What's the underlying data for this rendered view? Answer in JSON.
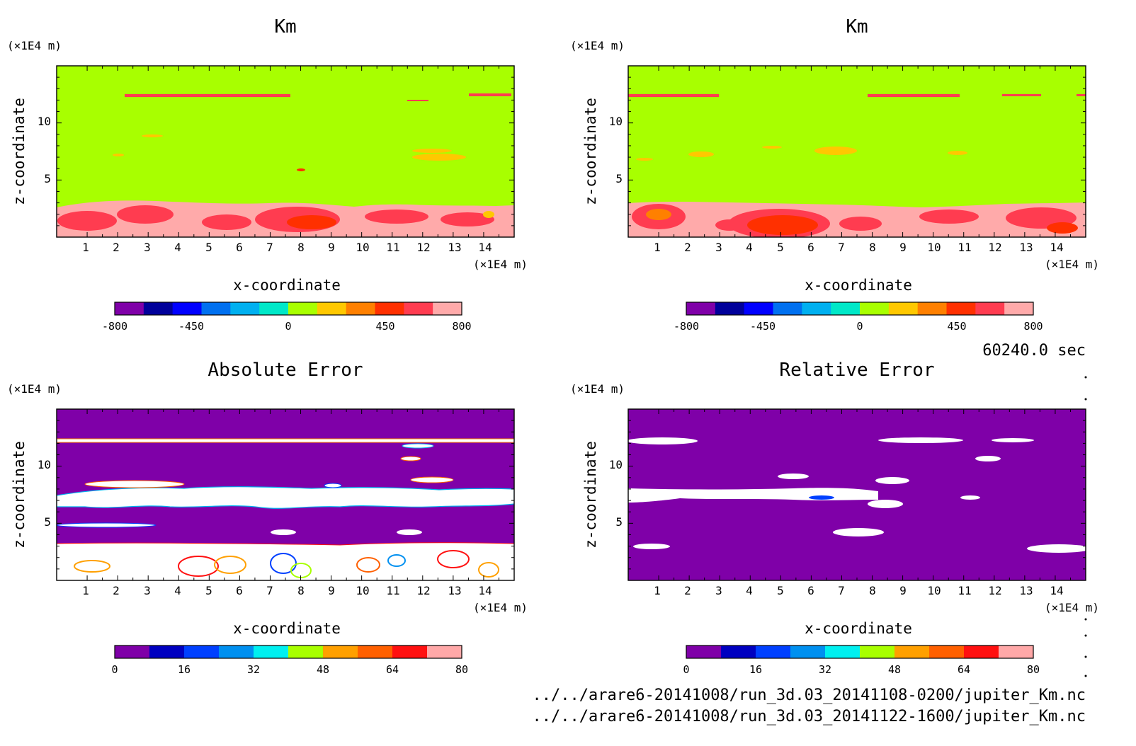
{
  "time_label": "60240.0 sec",
  "file_paths": [
    "../../arare6-20141008/run_3d.03_20141108-0200/jupiter_Km.nc",
    "../../arare6-20141008/run_3d.03_20141122-1600/jupiter_Km.nc"
  ],
  "colors": {
    "km_palette": [
      "#7f00a8",
      "#00009a",
      "#0000ff",
      "#0070f0",
      "#00b0f0",
      "#00e8c8",
      "#a8ff00",
      "#ffc800",
      "#ff8000",
      "#ff3000",
      "#ff3c50",
      "#ffaaaa"
    ],
    "err_palette": [
      "#7f00a8",
      "#0000c0",
      "#0040ff",
      "#0090f0",
      "#00f0f0",
      "#a8ff00",
      "#ffa000",
      "#ff6000",
      "#ff1010",
      "#ffa8a8"
    ]
  },
  "chart_data": [
    {
      "type": "heatmap",
      "title": "Km",
      "xlabel": "x-coordinate",
      "ylabel": "z-coordinate",
      "x_unit": "(×1E4 m)",
      "y_unit": "(×1E4 m)",
      "xlim": [
        0,
        15
      ],
      "ylim": [
        0,
        15
      ],
      "xticks": [
        1,
        2,
        3,
        4,
        5,
        6,
        7,
        8,
        9,
        10,
        11,
        12,
        13,
        14
      ],
      "yticks": [
        5,
        10
      ],
      "colorbar": {
        "min": -800,
        "max": 800,
        "labels": [
          -800,
          -450,
          0,
          450,
          800
        ]
      },
      "background_value": 200,
      "regions": [
        {
          "desc": "lower boundary layer",
          "value": 800
        },
        {
          "desc": "band z~12.3",
          "value": 550
        },
        {
          "desc": "eddies z<3",
          "value": 650
        }
      ]
    },
    {
      "type": "heatmap",
      "title": "Km",
      "xlabel": "x-coordinate",
      "ylabel": "z-coordinate",
      "x_unit": "(×1E4 m)",
      "y_unit": "(×1E4 m)",
      "xlim": [
        0,
        15
      ],
      "ylim": [
        0,
        15
      ],
      "xticks": [
        1,
        2,
        3,
        4,
        5,
        6,
        7,
        8,
        9,
        10,
        11,
        12,
        13,
        14
      ],
      "yticks": [
        5,
        10
      ],
      "colorbar": {
        "min": -800,
        "max": 800,
        "labels": [
          -800,
          -450,
          0,
          450,
          800
        ]
      },
      "background_value": 200
    },
    {
      "type": "heatmap",
      "title": "Absolute Error",
      "xlabel": "x-coordinate",
      "ylabel": "z-coordinate",
      "x_unit": "(×1E4 m)",
      "y_unit": "(×1E4 m)",
      "xlim": [
        0,
        15
      ],
      "ylim": [
        0,
        15
      ],
      "xticks": [
        1,
        2,
        3,
        4,
        5,
        6,
        7,
        8,
        9,
        10,
        11,
        12,
        13,
        14
      ],
      "yticks": [
        5,
        10
      ],
      "colorbar": {
        "min": 0,
        "max": 80,
        "labels": [
          0,
          16,
          32,
          48,
          64,
          80
        ]
      },
      "background_value": 0
    },
    {
      "type": "heatmap",
      "title": "Relative Error",
      "xlabel": "x-coordinate",
      "ylabel": "z-coordinate",
      "x_unit": "(×1E4 m)",
      "y_unit": "(×1E4 m)",
      "xlim": [
        0,
        15
      ],
      "ylim": [
        0,
        15
      ],
      "xticks": [
        1,
        2,
        3,
        4,
        5,
        6,
        7,
        8,
        9,
        10,
        11,
        12,
        13,
        14
      ],
      "yticks": [
        5,
        10
      ],
      "colorbar": {
        "min": 0,
        "max": 80,
        "labels": [
          0,
          16,
          32,
          48,
          64,
          80
        ]
      },
      "background_value": 0
    }
  ]
}
